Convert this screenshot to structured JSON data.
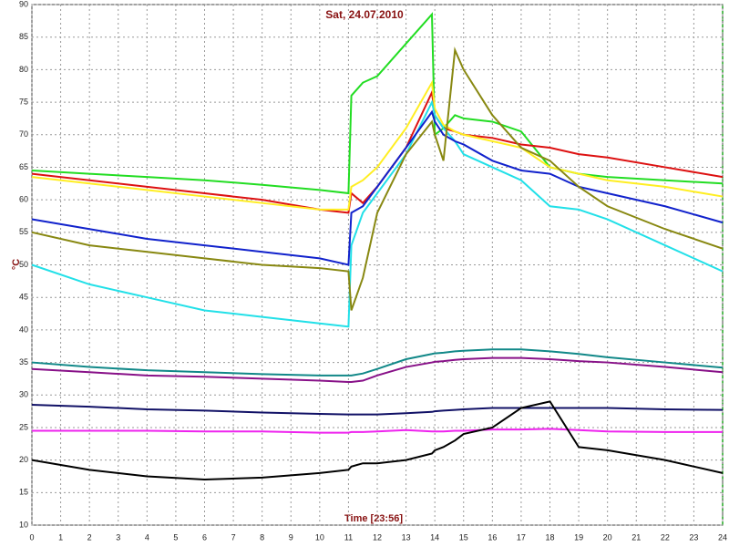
{
  "chart_data": {
    "type": "line",
    "title": "Sat, 24.07.2010",
    "x_label": "Time [23:56]",
    "y_label": "°C",
    "x": [
      0,
      2,
      4,
      6,
      8,
      10,
      11,
      11.1,
      11.5,
      12,
      13,
      13.9,
      14,
      14.3,
      14.7,
      15,
      16,
      17,
      18,
      19,
      20,
      22,
      24
    ],
    "xlim": [
      0,
      24
    ],
    "xticks": [
      0,
      1,
      2,
      3,
      4,
      5,
      6,
      7,
      8,
      9,
      10,
      11,
      12,
      13,
      14,
      15,
      16,
      17,
      18,
      19,
      20,
      21,
      22,
      23,
      24
    ],
    "ylim": [
      10,
      90
    ],
    "yticks": [
      10,
      15,
      20,
      25,
      30,
      35,
      40,
      45,
      50,
      55,
      60,
      65,
      70,
      75,
      80,
      85,
      90
    ],
    "grid": true,
    "series": [
      {
        "color": "#22dd22",
        "values": [
          64.5,
          64,
          63.5,
          63,
          62.3,
          61.5,
          61,
          76,
          78,
          79,
          84,
          88.5,
          70,
          71,
          73,
          72.5,
          72,
          70.5,
          65,
          64,
          63.5,
          63,
          62.5
        ]
      },
      {
        "color": "#dd1111",
        "values": [
          64,
          63,
          62,
          61,
          60,
          58.5,
          58,
          61,
          59.5,
          62,
          68,
          76.5,
          73,
          71,
          70.5,
          70,
          69.5,
          68.5,
          68,
          67,
          66.5,
          65,
          63.5
        ]
      },
      {
        "color": "#ffee22",
        "values": [
          63.5,
          62.5,
          61.5,
          60.5,
          59.5,
          58.5,
          58.5,
          62,
          63,
          65,
          71,
          78,
          74,
          71.5,
          70.5,
          70,
          69,
          68,
          65,
          64,
          63,
          62,
          60.5
        ]
      },
      {
        "color": "#22e0e8",
        "values": [
          50,
          47,
          45,
          43,
          42,
          41,
          40.5,
          53,
          58,
          61,
          67,
          75,
          73,
          71,
          69,
          67,
          65,
          63,
          59,
          58.5,
          57,
          53,
          49
        ]
      },
      {
        "color": "#1122cc",
        "values": [
          57,
          55.5,
          54,
          53,
          52,
          51,
          50,
          58,
          59,
          62,
          68,
          73.5,
          72,
          70,
          69,
          68.5,
          66,
          64.5,
          64,
          62,
          61,
          59,
          56.5
        ]
      },
      {
        "color": "#888811",
        "values": [
          55,
          53,
          52,
          51,
          50,
          49.5,
          49,
          43,
          48,
          58,
          67,
          72,
          70,
          66,
          83,
          80,
          73,
          68,
          66,
          62,
          59,
          55.5,
          52.5
        ]
      },
      {
        "color": "#118888",
        "values": [
          35,
          34.3,
          33.8,
          33.5,
          33.2,
          33,
          33,
          33,
          33.3,
          34,
          35.5,
          36.3,
          36.4,
          36.5,
          36.7,
          36.8,
          37,
          37,
          36.7,
          36.3,
          35.8,
          35,
          34.2
        ]
      },
      {
        "color": "#881188",
        "values": [
          34,
          33.5,
          33,
          32.8,
          32.5,
          32.2,
          32,
          32,
          32.2,
          33,
          34.3,
          35,
          35.1,
          35.2,
          35.4,
          35.5,
          35.7,
          35.7,
          35.5,
          35.2,
          35,
          34.3,
          33.5
        ]
      },
      {
        "color": "#111166",
        "values": [
          28.5,
          28.2,
          27.8,
          27.6,
          27.3,
          27.1,
          27,
          27,
          27,
          27,
          27.2,
          27.4,
          27.5,
          27.6,
          27.7,
          27.8,
          28,
          28,
          28,
          28,
          28,
          27.8,
          27.7
        ]
      },
      {
        "color": "#ee22ee",
        "values": [
          24.5,
          24.5,
          24.5,
          24.4,
          24.4,
          24.2,
          24.2,
          24.3,
          24.3,
          24.4,
          24.6,
          24.4,
          24.4,
          24.4,
          24.5,
          24.5,
          24.7,
          24.7,
          24.8,
          24.6,
          24.4,
          24.3,
          24.3
        ]
      },
      {
        "color": "#000000",
        "values": [
          20,
          18.5,
          17.5,
          17,
          17.3,
          18,
          18.5,
          19,
          19.5,
          19.5,
          20,
          21,
          21.5,
          22,
          23,
          24,
          25,
          28,
          29,
          22,
          21.5,
          20,
          18
        ]
      }
    ]
  }
}
